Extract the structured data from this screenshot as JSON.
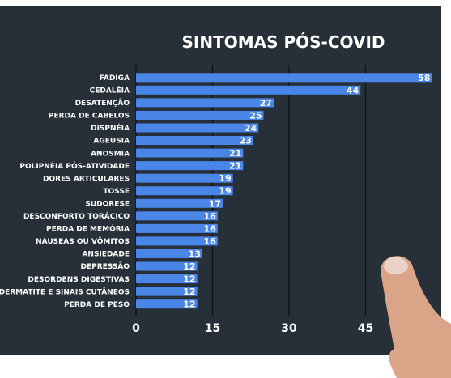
{
  "chart_data": {
    "type": "bar",
    "orientation": "horizontal",
    "title": "SINTOMAS PÓS-COVID",
    "xlabel": "",
    "ylabel": "",
    "xlim": [
      0,
      60
    ],
    "xticks": [
      0,
      15,
      30,
      45
    ],
    "grid": true,
    "bar_color": "#4a86e8",
    "background_color": "#273038",
    "categories": [
      "FADIGA",
      "CEDALÉIA",
      "DESATENÇÃO",
      "PERDA DE CABELOS",
      "DISPNÉIA",
      "AGEUSIA",
      "ANOSMIA",
      "POLIPNÉIA PÓS-ATIVIDADE",
      "DORES ARTICULARES",
      "TOSSE",
      "SUDORESE",
      "DESCONFORTO TORÁCICO",
      "PERDA DE MEMÓRIA",
      "NÁUSEAS OU VÔMITOS",
      "ANSIEDADE",
      "DEPRESSÃO",
      "DESORDENS DIGESTIVAS",
      "DERMATITE E SINAIS CUTÂNEOS",
      "PERDA DE PESO"
    ],
    "values": [
      58,
      44,
      27,
      25,
      24,
      23,
      21,
      21,
      19,
      19,
      17,
      16,
      16,
      16,
      13,
      12,
      12,
      12,
      12
    ]
  }
}
